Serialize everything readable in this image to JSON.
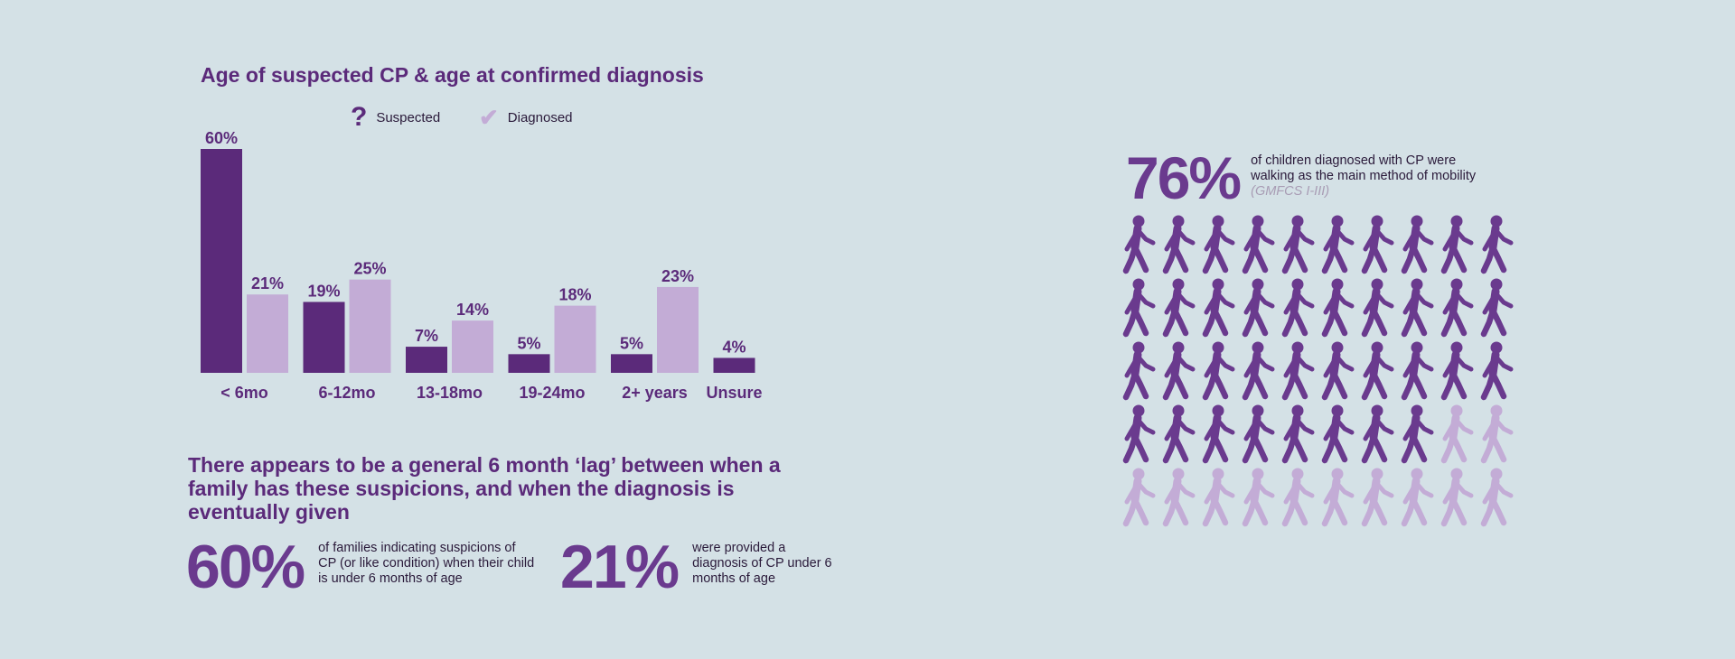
{
  "colors": {
    "background": "#d4e1e6",
    "suspected": "#5b2a7a",
    "diagnosed": "#c3acd6",
    "walking": "#6a3a8e",
    "not_walking": "#c3acd6"
  },
  "chart_data": {
    "type": "bar",
    "title": "Age of suspected CP & age at confirmed diagnosis",
    "categories": [
      "< 6mo",
      "6-12mo",
      "13-18mo",
      "19-24mo",
      "2+ years",
      "Unsure"
    ],
    "series": [
      {
        "name": "Suspected",
        "values": [
          60,
          19,
          7,
          5,
          5,
          4
        ],
        "labels": [
          "60%",
          "19%",
          "7%",
          "5%",
          "5%",
          "4%"
        ]
      },
      {
        "name": "Diagnosed",
        "values": [
          21,
          25,
          14,
          18,
          23,
          null
        ],
        "labels": [
          "21%",
          "25%",
          "14%",
          "18%",
          "23%",
          null
        ]
      }
    ],
    "legend": {
      "placement": "top",
      "items": [
        {
          "name": "Suspected",
          "icon": "question-mark-icon"
        },
        {
          "name": "Diagnosed",
          "icon": "checkmark-icon"
        }
      ]
    },
    "ylim": [
      0,
      60
    ],
    "grid": false,
    "xlabel": "",
    "ylabel": ""
  },
  "lag_statement": "There appears to be a general 6 month ‘lag’ between when a family has these suspicions, and when the diagnosis is eventually given",
  "stats": {
    "suspected_under_6mo": {
      "value": "60%",
      "text": "of families indicating suspicions of CP (or like condition) when their child is under 6 months of age"
    },
    "diagnosed_under_6mo": {
      "value": "21%",
      "text": "were provided a diagnosis of CP under 6 months of age"
    }
  },
  "mobility": {
    "value": "76%",
    "text": "of children diagnosed with CP were walking as the main method of mobility",
    "note": "(GMFCS I-III)",
    "pictogram": {
      "total": 50,
      "highlighted": 38,
      "icon": "walking-person-icon"
    }
  }
}
